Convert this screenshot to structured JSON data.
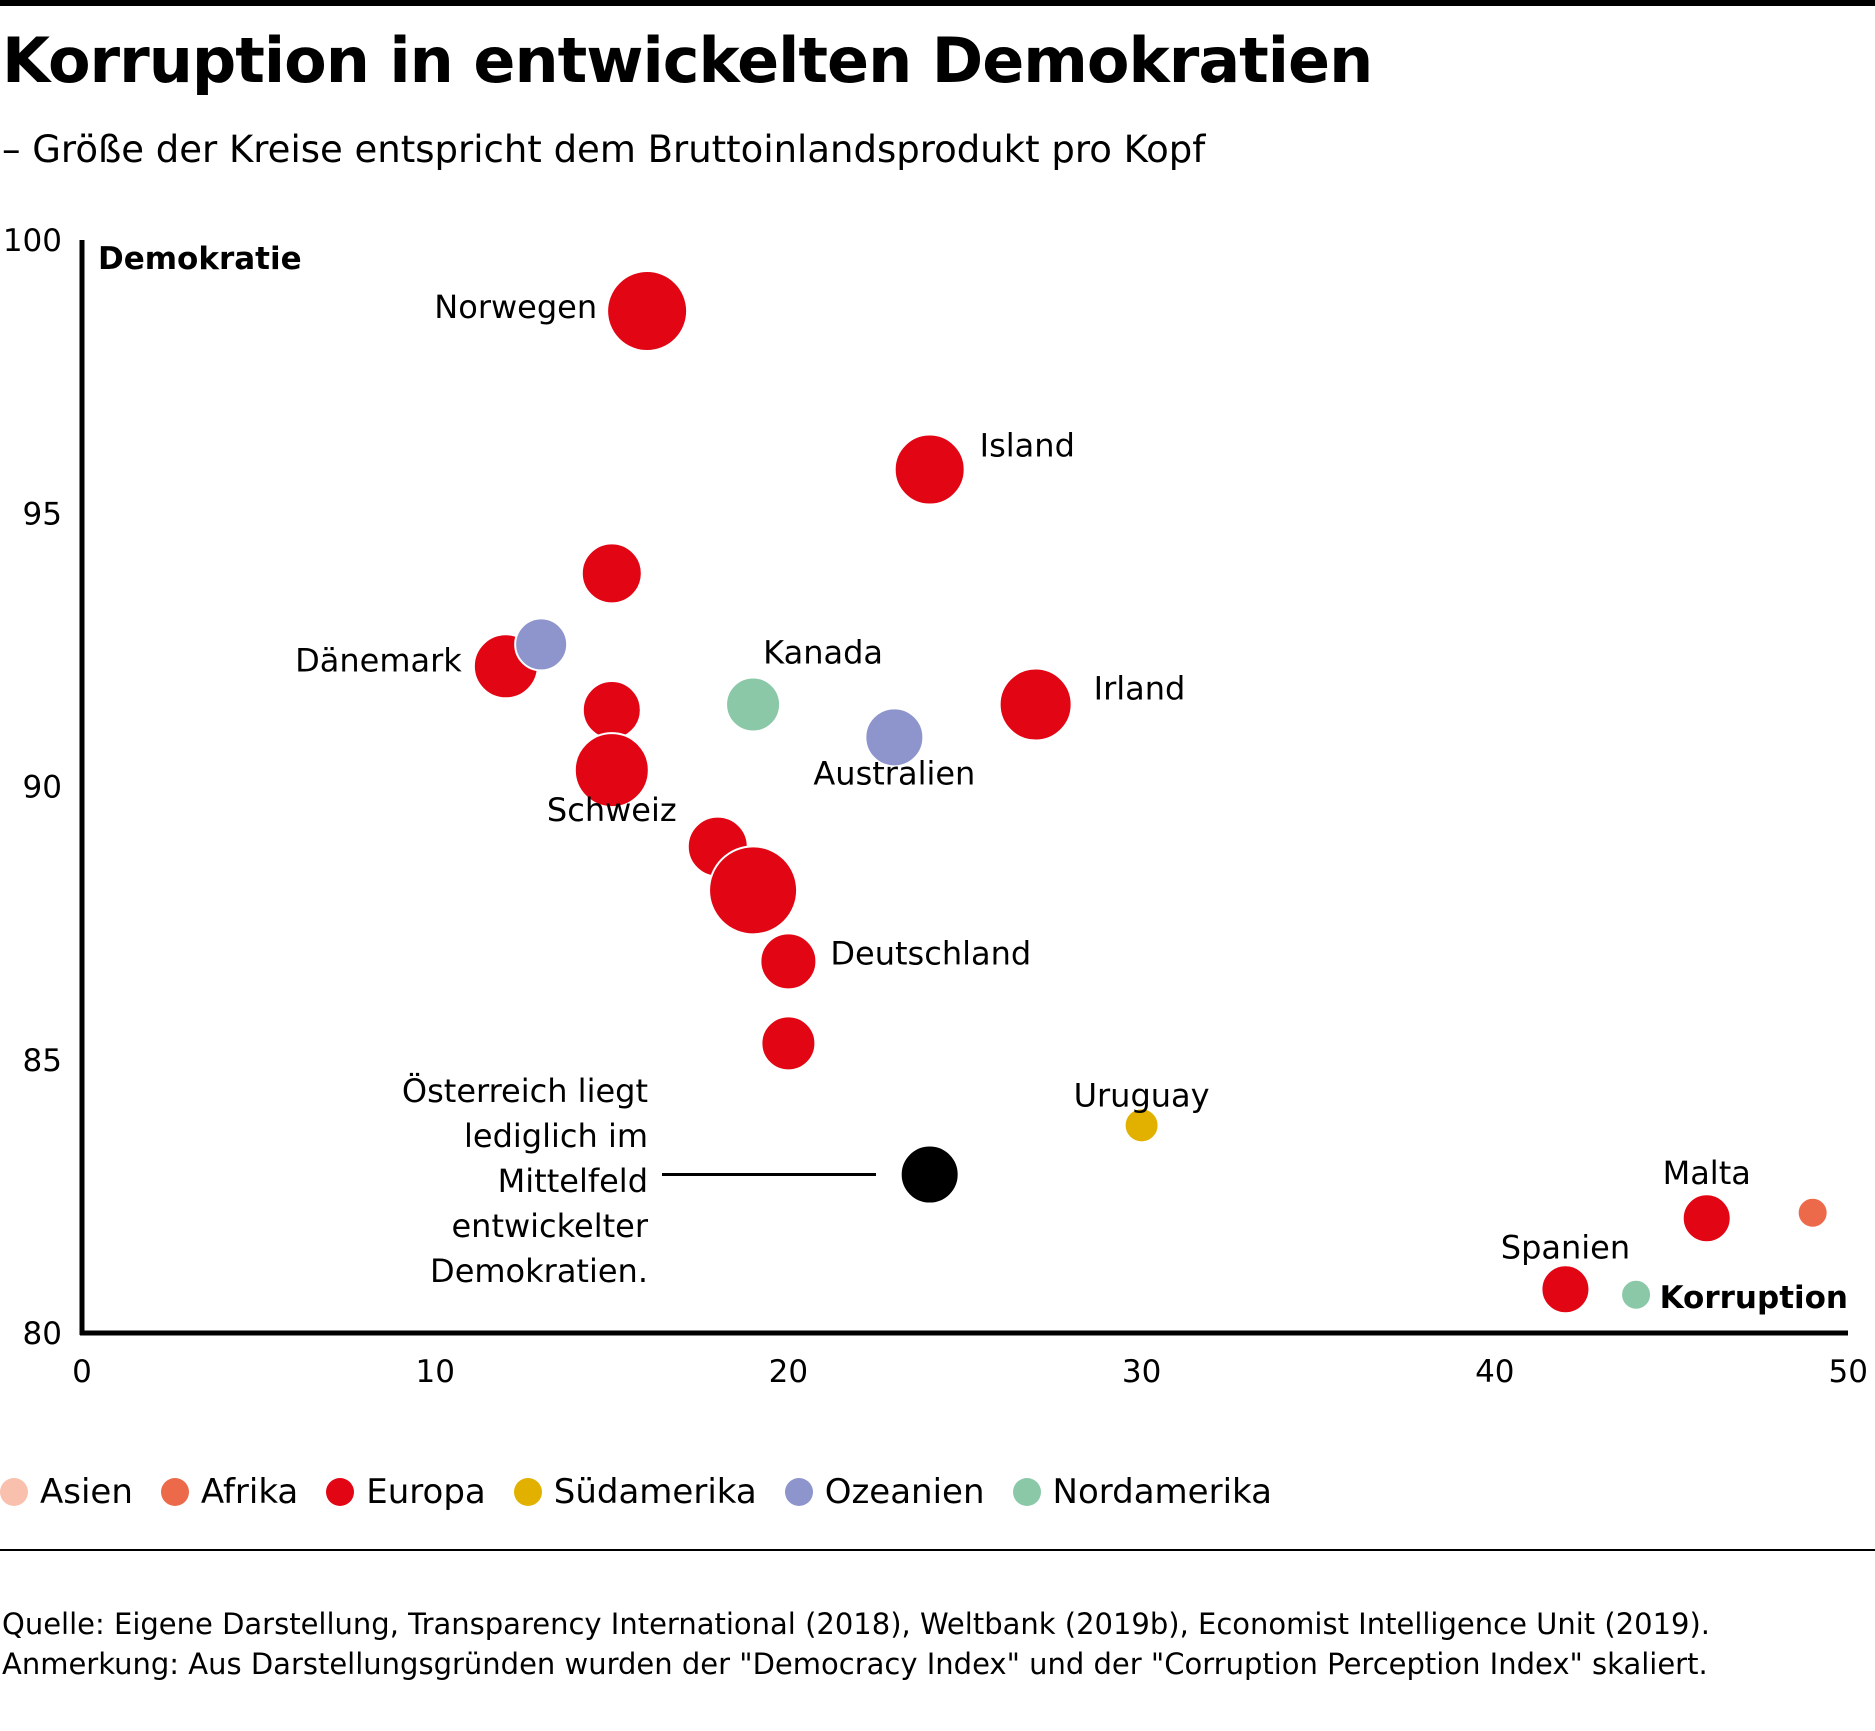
{
  "title": "Korruption in entwickelten Demokratien",
  "subtitle": "– Größe der Kreise entspricht dem Bruttoinlandsprodukt pro Kopf",
  "chart_data": {
    "type": "scatter",
    "xlabel": "Korruption",
    "ylabel": "Demokratie",
    "xlim": [
      0,
      50
    ],
    "ylim": [
      80,
      100
    ],
    "xticks": [
      0,
      10,
      20,
      30,
      40,
      50
    ],
    "yticks": [
      80,
      85,
      90,
      95,
      100
    ],
    "grid": false,
    "legend_position": "bottom",
    "points": [
      {
        "x": 16,
        "y": 98.7,
        "size": 40,
        "color": "#e20614",
        "label": "Norwegen"
      },
      {
        "x": 24,
        "y": 95.8,
        "size": 35,
        "color": "#e20614",
        "label": "Island"
      },
      {
        "x": 15,
        "y": 93.9,
        "size": 30,
        "color": "#e20614",
        "label": ""
      },
      {
        "x": 12,
        "y": 92.2,
        "size": 32,
        "color": "#e20614",
        "label": "Dänemark"
      },
      {
        "x": 13,
        "y": 92.6,
        "size": 26,
        "color": "#8e95cc",
        "label": ""
      },
      {
        "x": 15,
        "y": 91.4,
        "size": 29,
        "color": "#e20614",
        "label": ""
      },
      {
        "x": 19,
        "y": 91.5,
        "size": 27,
        "color": "#8ac8a8",
        "label": "Kanada"
      },
      {
        "x": 23,
        "y": 90.9,
        "size": 29,
        "color": "#8e95cc",
        "label": "Australien"
      },
      {
        "x": 27,
        "y": 91.5,
        "size": 36,
        "color": "#e20614",
        "label": "Irland"
      },
      {
        "x": 15,
        "y": 90.3,
        "size": 37,
        "color": "#e20614",
        "label": "Schweiz"
      },
      {
        "x": 18,
        "y": 88.9,
        "size": 30,
        "color": "#e20614",
        "label": ""
      },
      {
        "x": 19,
        "y": 88.1,
        "size": 44,
        "color": "#e20614",
        "label": ""
      },
      {
        "x": 20,
        "y": 86.8,
        "size": 28,
        "color": "#e20614",
        "label": "Deutschland"
      },
      {
        "x": 20,
        "y": 85.3,
        "size": 27,
        "color": "#e20614",
        "label": ""
      },
      {
        "x": 30,
        "y": 83.8,
        "size": 17,
        "color": "#e2b100",
        "label": "Uruguay"
      },
      {
        "x": 24,
        "y": 82.9,
        "size": 29,
        "color": "#000000",
        "label": ""
      },
      {
        "x": 46,
        "y": 82.1,
        "size": 24,
        "color": "#e20614",
        "label": "Malta"
      },
      {
        "x": 49,
        "y": 82.2,
        "size": 15,
        "color": "#ec6a4a",
        "label": ""
      },
      {
        "x": 42,
        "y": 80.8,
        "size": 24,
        "color": "#e20614",
        "label": "Spanien"
      },
      {
        "x": 44,
        "y": 80.7,
        "size": 15,
        "color": "#8ac8a8",
        "label": ""
      }
    ],
    "annotation": {
      "lines": [
        "Österreich liegt",
        "lediglich im",
        "Mittelfeld",
        "entwickelter",
        "Demokratien."
      ]
    }
  },
  "legend": [
    {
      "label": "Asien",
      "color": "#f9c0ad"
    },
    {
      "label": "Afrika",
      "color": "#ec6a4a"
    },
    {
      "label": "Europa",
      "color": "#e20614"
    },
    {
      "label": "Südamerika",
      "color": "#e2b100"
    },
    {
      "label": "Ozeanien",
      "color": "#8e95cc"
    },
    {
      "label": "Nordamerika",
      "color": "#8ac8a8"
    }
  ],
  "footer": {
    "source": "Quelle: Eigene Darstellung, Transparency International (2018), Weltbank (2019b), Economist Intelligence Unit (2019).",
    "note": "Anmerkung: Aus Darstellungsgründen wurden der \"Democracy Index\" und der \"Corruption Perception Index\" skaliert."
  }
}
